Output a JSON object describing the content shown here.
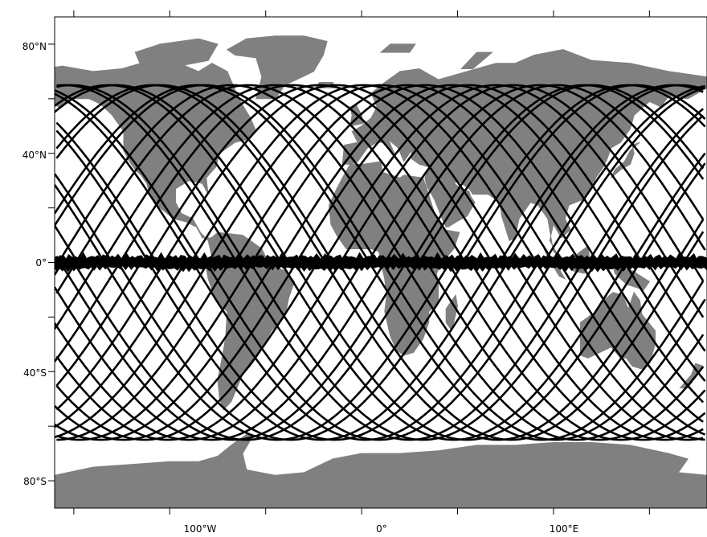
{
  "map": {
    "projection": "equirectangular",
    "lon_range": [
      -160,
      180
    ],
    "lat_range": [
      -90,
      90
    ],
    "land_color": "#808080",
    "ocean_color": "#ffffff",
    "track_color": "#000000",
    "lat_labels": [
      "80°N",
      "40°N",
      "0°",
      "40°S",
      "80°S"
    ],
    "lat_values": [
      80,
      40,
      0,
      -40,
      -80
    ],
    "lon_labels": [
      "100°W",
      "0°",
      "100°E"
    ],
    "lon_values": [
      -100,
      0,
      100
    ],
    "minor_lon_ticks": [
      -150,
      -100,
      -50,
      0,
      50,
      100,
      150
    ],
    "minor_lat_ticks": [
      -80,
      -60,
      -40,
      -20,
      0,
      20,
      40,
      60,
      80
    ],
    "track": {
      "max_latitude": 65,
      "ascending_start_lons": [
        -158,
        -135,
        -112,
        -89,
        -66,
        -43,
        -20,
        3,
        26,
        49,
        72,
        95,
        118,
        141,
        164
      ],
      "descending_start_lons": [
        -150,
        -127,
        -104,
        -81,
        -58,
        -35,
        -12,
        11,
        34,
        57,
        80,
        103,
        126,
        149,
        172
      ]
    }
  }
}
